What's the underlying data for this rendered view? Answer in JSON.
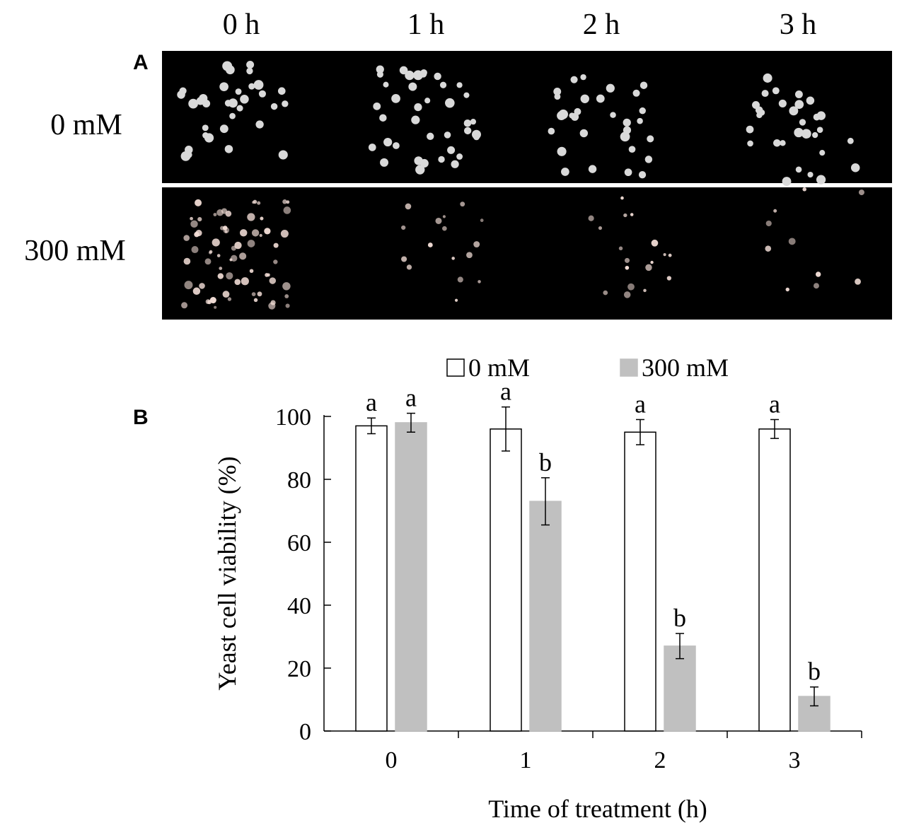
{
  "panel_a": {
    "label": "A",
    "column_labels": [
      "0 h",
      "1 h",
      "2 h",
      "3 h"
    ],
    "row_labels": [
      "0 mM",
      "300 mM"
    ],
    "image_colors": {
      "background": "#000000",
      "colony_control": "#d9d9d9",
      "colony_treated": "#f2ddd6"
    }
  },
  "panel_b": {
    "label": "B"
  },
  "chart_data": {
    "type": "bar",
    "categories": [
      "0",
      "1",
      "2",
      "3"
    ],
    "xlabel": "Time of treatment (h)",
    "ylabel": "Yeast cell viability (%)",
    "ylim": [
      0,
      100
    ],
    "yticks": [
      "0",
      "20",
      "40",
      "60",
      "80",
      "100"
    ],
    "grid": false,
    "legend_position": "top",
    "series": [
      {
        "name": "0 mM",
        "color": "#ffffff",
        "stroke": "#000000",
        "values": [
          97,
          96,
          95,
          96
        ],
        "errors": [
          2.5,
          7,
          4,
          3
        ],
        "significance": [
          "a",
          "a",
          "a",
          "a"
        ]
      },
      {
        "name": "300 mM",
        "color": "#c0c0c0",
        "stroke": "#c0c0c0",
        "values": [
          98,
          73,
          27,
          11
        ],
        "errors": [
          3,
          7.5,
          4,
          3
        ],
        "significance": [
          "a",
          "b",
          "b",
          "b"
        ]
      }
    ]
  }
}
